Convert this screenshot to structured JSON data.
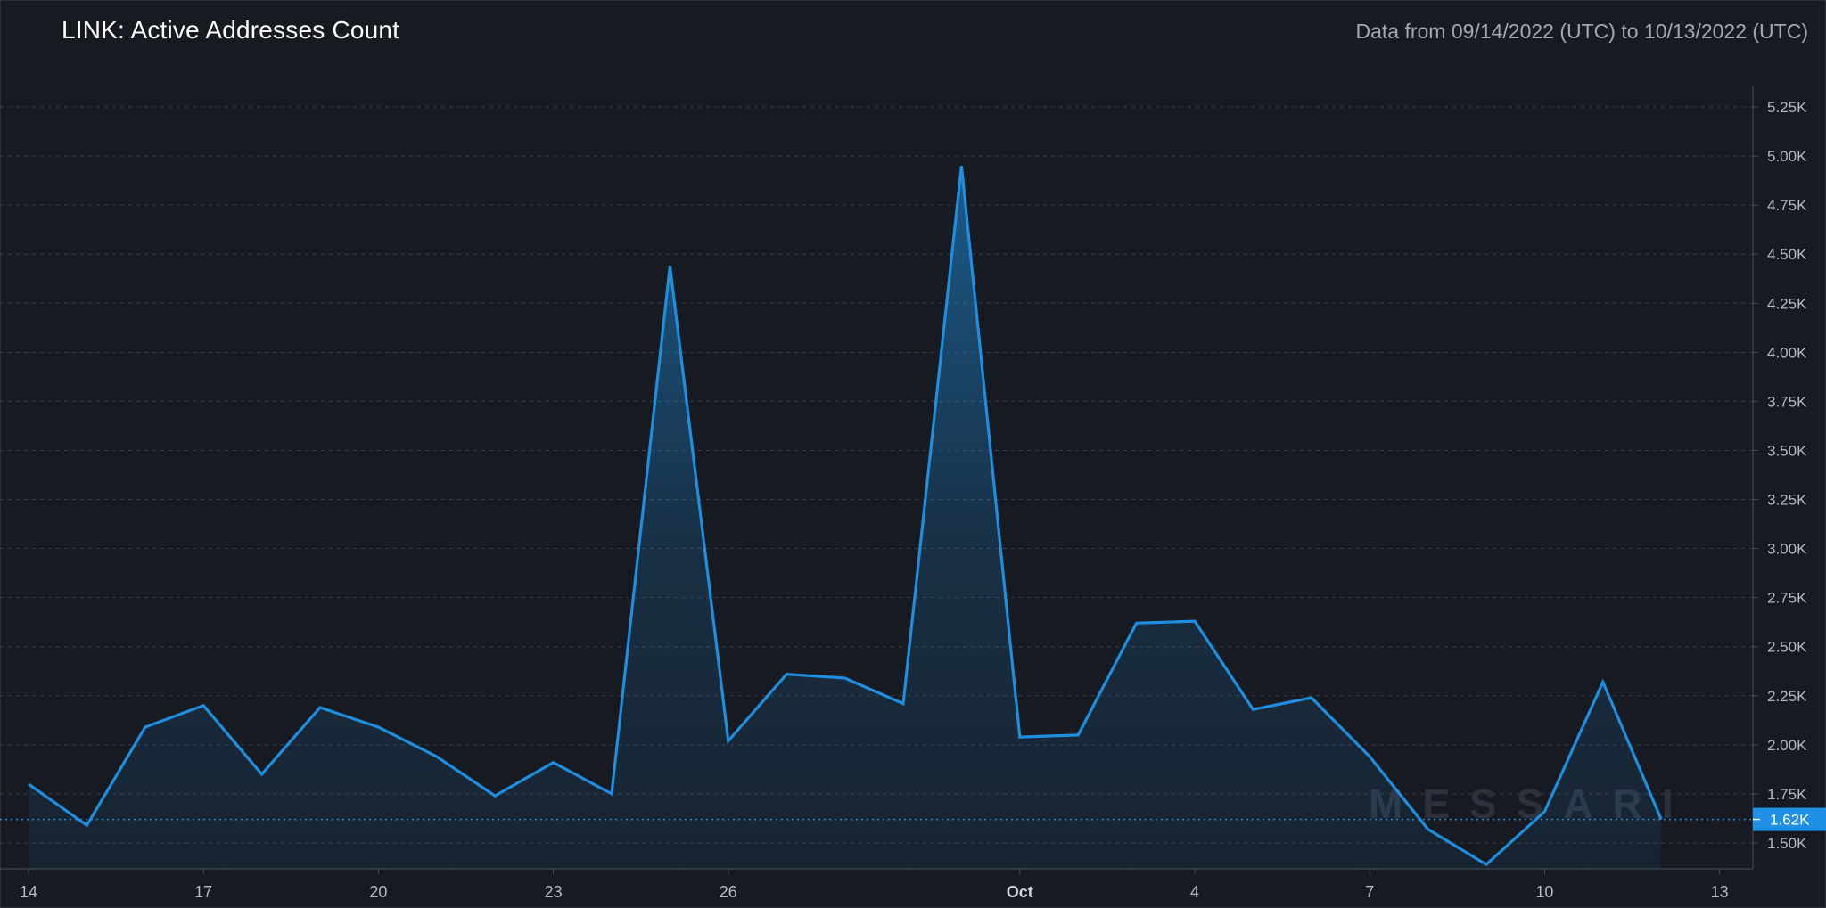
{
  "title": "LINK: Active Addresses Count",
  "date_range": "Data from 09/14/2022 (UTC) to 10/13/2022 (UTC)",
  "watermark": "MESSARI",
  "colors": {
    "background": "#171a21",
    "line": "#1e8fe0",
    "last_value_badge": "#1e90e6",
    "grid": "#3a3f4a"
  },
  "chart_data": {
    "type": "area",
    "title": "LINK: Active Addresses Count",
    "x": [
      "2022-09-14",
      "2022-09-15",
      "2022-09-16",
      "2022-09-17",
      "2022-09-18",
      "2022-09-19",
      "2022-09-20",
      "2022-09-21",
      "2022-09-22",
      "2022-09-23",
      "2022-09-24",
      "2022-09-25",
      "2022-09-26",
      "2022-09-27",
      "2022-09-28",
      "2022-09-29",
      "2022-09-30",
      "2022-10-01",
      "2022-10-02",
      "2022-10-03",
      "2022-10-04",
      "2022-10-05",
      "2022-10-06",
      "2022-10-07",
      "2022-10-08",
      "2022-10-09",
      "2022-10-10",
      "2022-10-11",
      "2022-10-12"
    ],
    "series": [
      {
        "values": [
          1800,
          1590,
          2090,
          2200,
          1850,
          2190,
          2090,
          1940,
          1740,
          1910,
          1750,
          4440,
          2020,
          2360,
          2340,
          2210,
          4950,
          2040,
          2050,
          2620,
          2630,
          2180,
          2240,
          1940,
          1570,
          1390,
          1660,
          2320,
          1620
        ]
      }
    ],
    "x_ticks": [
      "14",
      "17",
      "20",
      "23",
      "26",
      "Oct",
      "4",
      "7",
      "10",
      "13"
    ],
    "x_tick_dates": [
      "2022-09-14",
      "2022-09-17",
      "2022-09-20",
      "2022-09-23",
      "2022-09-26",
      "2022-10-01",
      "2022-10-04",
      "2022-10-07",
      "2022-10-10",
      "2022-10-13"
    ],
    "y_ticks": [
      "1.50K",
      "1.75K",
      "2.00K",
      "2.25K",
      "2.50K",
      "2.75K",
      "3.00K",
      "3.25K",
      "3.50K",
      "3.75K",
      "4.00K",
      "4.25K",
      "4.50K",
      "4.75K",
      "5.00K",
      "5.25K"
    ],
    "y_tick_values": [
      1500,
      1750,
      2000,
      2250,
      2500,
      2750,
      3000,
      3250,
      3500,
      3750,
      4000,
      4250,
      4500,
      4750,
      5000,
      5250
    ],
    "last_value_label": "1.62K",
    "last_value": 1620,
    "grid": true,
    "y_axis_position": "right"
  }
}
